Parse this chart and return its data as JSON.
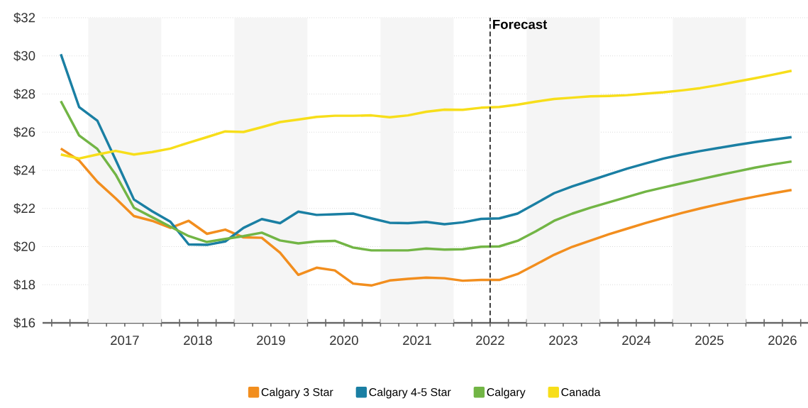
{
  "chart_data": {
    "type": "line",
    "x": [
      2016.625,
      2016.875,
      2017.125,
      2017.375,
      2017.625,
      2017.875,
      2018.125,
      2018.375,
      2018.625,
      2018.875,
      2019.125,
      2019.375,
      2019.625,
      2019.875,
      2020.125,
      2020.375,
      2020.625,
      2020.875,
      2021.125,
      2021.375,
      2021.625,
      2021.875,
      2022.125,
      2022.375,
      2022.625,
      2022.875,
      2023.125,
      2023.375,
      2023.625,
      2023.875,
      2024.125,
      2024.375,
      2024.625,
      2024.875,
      2025.125,
      2025.375,
      2025.625,
      2025.875,
      2026.125,
      2026.375,
      2026.625
    ],
    "series": [
      {
        "name": "Calgary 3 Star",
        "color": "#f28e1e",
        "values": [
          25.14,
          24.52,
          23.4,
          22.53,
          21.6,
          21.35,
          20.98,
          21.35,
          20.67,
          20.89,
          20.48,
          20.46,
          19.68,
          18.52,
          18.89,
          18.75,
          18.06,
          17.96,
          18.22,
          18.31,
          18.37,
          18.34,
          18.21,
          18.25,
          18.25,
          18.56,
          19.06,
          19.57,
          19.99,
          20.32,
          20.65,
          20.94,
          21.23,
          21.5,
          21.76,
          22.0,
          22.22,
          22.43,
          22.62,
          22.8,
          22.97
        ]
      },
      {
        "name": "Calgary 4-5 Star",
        "color": "#1a7fa3",
        "values": [
          30.09,
          27.32,
          26.6,
          24.55,
          22.47,
          21.85,
          21.3,
          20.11,
          20.09,
          20.27,
          20.98,
          21.44,
          21.23,
          21.83,
          21.66,
          21.69,
          21.73,
          21.48,
          21.25,
          21.23,
          21.29,
          21.17,
          21.27,
          21.45,
          21.48,
          21.73,
          22.26,
          22.8,
          23.16,
          23.47,
          23.78,
          24.09,
          24.36,
          24.62,
          24.83,
          25.01,
          25.17,
          25.33,
          25.48,
          25.61,
          25.74
        ]
      },
      {
        "name": "Calgary",
        "color": "#72b545",
        "values": [
          27.63,
          25.83,
          25.12,
          23.78,
          22.04,
          21.54,
          21.04,
          20.55,
          20.24,
          20.4,
          20.55,
          20.73,
          20.32,
          20.17,
          20.27,
          20.3,
          19.95,
          19.8,
          19.8,
          19.8,
          19.9,
          19.84,
          19.86,
          19.99,
          20.01,
          20.3,
          20.8,
          21.35,
          21.73,
          22.04,
          22.32,
          22.6,
          22.88,
          23.1,
          23.32,
          23.53,
          23.74,
          23.94,
          24.14,
          24.31,
          24.46
        ]
      },
      {
        "name": "Canada",
        "color": "#f7de1a",
        "values": [
          24.83,
          24.62,
          24.83,
          25.02,
          24.83,
          24.96,
          25.14,
          25.45,
          25.74,
          26.04,
          26.01,
          26.26,
          26.53,
          26.66,
          26.8,
          26.86,
          26.86,
          26.88,
          26.78,
          26.88,
          27.07,
          27.18,
          27.17,
          27.28,
          27.32,
          27.44,
          27.6,
          27.74,
          27.81,
          27.88,
          27.9,
          27.94,
          28.02,
          28.09,
          28.19,
          28.31,
          28.47,
          28.65,
          28.83,
          29.02,
          29.22
        ]
      }
    ],
    "xlim": [
      2016.375,
      2026.85
    ],
    "xticks": [
      {
        "value": 2016.5,
        "label": null
      },
      {
        "value": 2016.75,
        "label": null
      },
      {
        "value": 2017,
        "label": null
      },
      {
        "value": 2017.25,
        "label": null
      },
      {
        "value": 2017.5,
        "label": "2017"
      },
      {
        "value": 2017.75,
        "label": null
      },
      {
        "value": 2018,
        "label": null
      },
      {
        "value": 2018.25,
        "label": null
      },
      {
        "value": 2018.5,
        "label": "2018"
      },
      {
        "value": 2018.75,
        "label": null
      },
      {
        "value": 2019,
        "label": null
      },
      {
        "value": 2019.25,
        "label": null
      },
      {
        "value": 2019.5,
        "label": "2019"
      },
      {
        "value": 2019.75,
        "label": null
      },
      {
        "value": 2020,
        "label": null
      },
      {
        "value": 2020.25,
        "label": null
      },
      {
        "value": 2020.5,
        "label": "2020"
      },
      {
        "value": 2020.75,
        "label": null
      },
      {
        "value": 2021,
        "label": null
      },
      {
        "value": 2021.25,
        "label": null
      },
      {
        "value": 2021.5,
        "label": "2021"
      },
      {
        "value": 2021.75,
        "label": null
      },
      {
        "value": 2022,
        "label": null
      },
      {
        "value": 2022.25,
        "label": null
      },
      {
        "value": 2022.5,
        "label": "2022"
      },
      {
        "value": 2022.75,
        "label": null
      },
      {
        "value": 2023,
        "label": null
      },
      {
        "value": 2023.25,
        "label": null
      },
      {
        "value": 2023.5,
        "label": "2023"
      },
      {
        "value": 2023.75,
        "label": null
      },
      {
        "value": 2024,
        "label": null
      },
      {
        "value": 2024.25,
        "label": null
      },
      {
        "value": 2024.5,
        "label": "2024"
      },
      {
        "value": 2024.75,
        "label": null
      },
      {
        "value": 2025,
        "label": null
      },
      {
        "value": 2025.25,
        "label": null
      },
      {
        "value": 2025.5,
        "label": "2025"
      },
      {
        "value": 2025.75,
        "label": null
      },
      {
        "value": 2026,
        "label": null
      },
      {
        "value": 2026.25,
        "label": null
      },
      {
        "value": 2026.5,
        "label": "2026"
      },
      {
        "value": 2026.75,
        "label": null
      }
    ],
    "ylim": [
      16,
      32
    ],
    "yticks": [
      {
        "value": 16,
        "label": "$16"
      },
      {
        "value": 18,
        "label": "$18"
      },
      {
        "value": 20,
        "label": "$20"
      },
      {
        "value": 22,
        "label": "$22"
      },
      {
        "value": 24,
        "label": "$24"
      },
      {
        "value": 26,
        "label": "$26"
      },
      {
        "value": 28,
        "label": "$28"
      },
      {
        "value": 30,
        "label": "$30"
      },
      {
        "value": 32,
        "label": "$32"
      }
    ],
    "grid": "y",
    "legend": "bottom",
    "marker": "none",
    "line_style": "solid",
    "bands": [
      {
        "axis": "x",
        "from": 2017,
        "to": 2018,
        "color": "#f5f5f5"
      },
      {
        "axis": "x",
        "from": 2019,
        "to": 2020,
        "color": "#f5f5f5"
      },
      {
        "axis": "x",
        "from": 2021,
        "to": 2022,
        "color": "#f5f5f5"
      },
      {
        "axis": "x",
        "from": 2023,
        "to": 2024,
        "color": "#f5f5f5"
      },
      {
        "axis": "x",
        "from": 2025,
        "to": 2026,
        "color": "#f5f5f5"
      }
    ],
    "ref_lines": [
      {
        "axis": "x",
        "value": 2022.5,
        "label": "Forecast",
        "line_style": "dashed",
        "color": "#444444"
      }
    ]
  }
}
